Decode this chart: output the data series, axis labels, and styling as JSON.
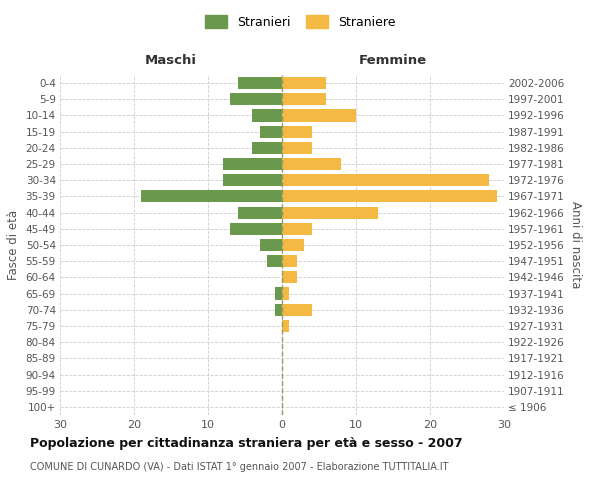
{
  "age_groups": [
    "100+",
    "95-99",
    "90-94",
    "85-89",
    "80-84",
    "75-79",
    "70-74",
    "65-69",
    "60-64",
    "55-59",
    "50-54",
    "45-49",
    "40-44",
    "35-39",
    "30-34",
    "25-29",
    "20-24",
    "15-19",
    "10-14",
    "5-9",
    "0-4"
  ],
  "birth_years": [
    "≤ 1906",
    "1907-1911",
    "1912-1916",
    "1917-1921",
    "1922-1926",
    "1927-1931",
    "1932-1936",
    "1937-1941",
    "1942-1946",
    "1947-1951",
    "1952-1956",
    "1957-1961",
    "1962-1966",
    "1967-1971",
    "1972-1976",
    "1977-1981",
    "1982-1986",
    "1987-1991",
    "1992-1996",
    "1997-2001",
    "2002-2006"
  ],
  "maschi": [
    0,
    0,
    0,
    0,
    0,
    0,
    1,
    1,
    0,
    2,
    3,
    7,
    6,
    19,
    8,
    8,
    4,
    3,
    4,
    7,
    6
  ],
  "femmine": [
    0,
    0,
    0,
    0,
    0,
    1,
    4,
    1,
    2,
    2,
    3,
    4,
    13,
    29,
    28,
    8,
    4,
    4,
    10,
    6,
    6
  ],
  "male_color": "#6a994e",
  "female_color": "#f4b942",
  "background_color": "#ffffff",
  "grid_color": "#cccccc",
  "title": "Popolazione per cittadinanza straniera per età e sesso - 2007",
  "subtitle": "COMUNE DI CUNARDO (VA) - Dati ISTAT 1° gennaio 2007 - Elaborazione TUTTITALIA.IT",
  "xlabel_left": "Maschi",
  "xlabel_right": "Femmine",
  "ylabel_left": "Fasce di età",
  "ylabel_right": "Anni di nascita",
  "legend_male": "Stranieri",
  "legend_female": "Straniere",
  "xlim": 30,
  "bar_height": 0.75
}
